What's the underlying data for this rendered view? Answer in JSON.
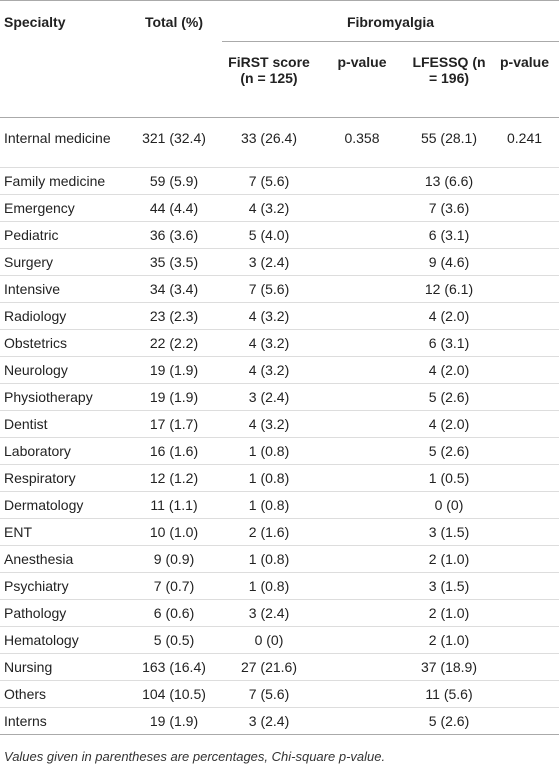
{
  "table": {
    "header": {
      "specialty": "Specialty",
      "total": "Total (%)",
      "group": "Fibromyalgia",
      "first": "FiRST score (n = 125)",
      "first_p": "p-value",
      "lfessq": "LFESSQ (n = 196)",
      "lfessq_p": "p-value"
    },
    "rows": [
      {
        "specialty": "Internal medicine",
        "total": "321 (32.4)",
        "first": "33 (26.4)",
        "first_p": "0.358",
        "lfessq": "55 (28.1)",
        "lfessq_p": "0.241"
      },
      {
        "specialty": "Family medicine",
        "total": "59 (5.9)",
        "first": "7 (5.6)",
        "lfessq": "13 (6.6)"
      },
      {
        "specialty": "Emergency",
        "total": "44 (4.4)",
        "first": "4 (3.2)",
        "lfessq": "7 (3.6)"
      },
      {
        "specialty": "Pediatric",
        "total": "36 (3.6)",
        "first": "5 (4.0)",
        "lfessq": "6 (3.1)"
      },
      {
        "specialty": "Surgery",
        "total": "35 (3.5)",
        "first": "3 (2.4)",
        "lfessq": "9 (4.6)"
      },
      {
        "specialty": "Intensive",
        "total": "34 (3.4)",
        "first": "7 (5.6)",
        "lfessq": "12 (6.1)"
      },
      {
        "specialty": "Radiology",
        "total": "23 (2.3)",
        "first": "4 (3.2)",
        "lfessq": "4 (2.0)"
      },
      {
        "specialty": "Obstetrics",
        "total": "22 (2.2)",
        "first": "4 (3.2)",
        "lfessq": "6 (3.1)"
      },
      {
        "specialty": "Neurology",
        "total": "19 (1.9)",
        "first": "4 (3.2)",
        "lfessq": "4 (2.0)"
      },
      {
        "specialty": "Physiotherapy",
        "total": "19 (1.9)",
        "first": "3 (2.4)",
        "lfessq": "5 (2.6)"
      },
      {
        "specialty": "Dentist",
        "total": "17 (1.7)",
        "first": "4 (3.2)",
        "lfessq": "4 (2.0)"
      },
      {
        "specialty": "Laboratory",
        "total": "16 (1.6)",
        "first": "1 (0.8)",
        "lfessq": "5 (2.6)"
      },
      {
        "specialty": "Respiratory",
        "total": "12 (1.2)",
        "first": "1 (0.8)",
        "lfessq": "1 (0.5)"
      },
      {
        "specialty": "Dermatology",
        "total": "11 (1.1)",
        "first": "1 (0.8)",
        "lfessq": "0 (0)"
      },
      {
        "specialty": "ENT",
        "total": "10 (1.0)",
        "first": "2 (1.6)",
        "lfessq": "3 (1.5)"
      },
      {
        "specialty": "Anesthesia",
        "total": "9 (0.9)",
        "first": "1 (0.8)",
        "lfessq": "2 (1.0)"
      },
      {
        "specialty": "Psychiatry",
        "total": "7 (0.7)",
        "first": "1 (0.8)",
        "lfessq": "3 (1.5)"
      },
      {
        "specialty": "Pathology",
        "total": "6 (0.6)",
        "first": "3 (2.4)",
        "lfessq": "2 (1.0)"
      },
      {
        "specialty": "Hematology",
        "total": "5 (0.5)",
        "first": "0 (0)",
        "lfessq": "2 (1.0)"
      },
      {
        "specialty": "Nursing",
        "total": "163 (16.4)",
        "first": "27 (21.6)",
        "lfessq": "37 (18.9)"
      },
      {
        "specialty": "Others",
        "total": "104 (10.5)",
        "first": "7 (5.6)",
        "lfessq": "11 (5.6)"
      },
      {
        "specialty": "Interns",
        "total": "19 (1.9)",
        "first": "3 (2.4)",
        "lfessq": "5 (2.6)"
      }
    ],
    "footnote": "Values given in parentheses are percentages, Chi-square p-value."
  }
}
